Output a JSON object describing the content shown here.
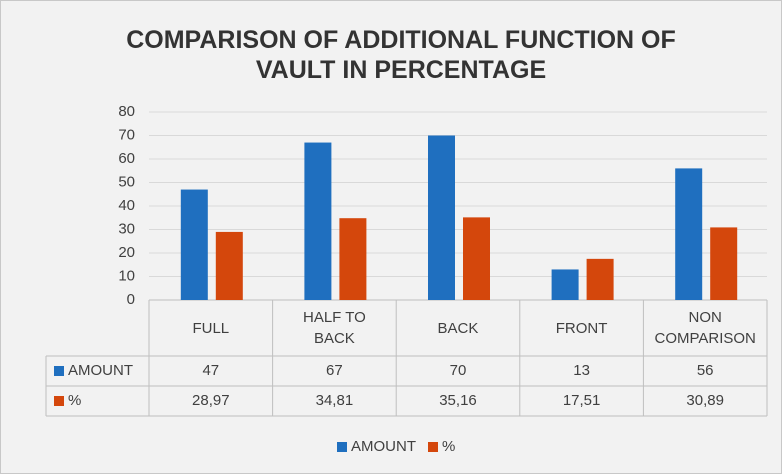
{
  "chart_data": {
    "type": "bar",
    "title": "COMPARISON OF ADDITIONAL FUNCTION OF VAULT IN PERCENTAGE",
    "categories": [
      "FULL",
      "HALF TO BACK",
      "BACK",
      "FRONT",
      "NON COMPARISON"
    ],
    "series": [
      {
        "name": "AMOUNT",
        "color": "#1f6fbf",
        "values": [
          47,
          67,
          70,
          13,
          56
        ]
      },
      {
        "name": "%",
        "color": "#d4470c",
        "values": [
          28.97,
          34.81,
          35.16,
          17.51,
          30.89
        ],
        "value_labels": [
          "28,97",
          "34,81",
          "35,16",
          "17,51",
          "30,89"
        ]
      }
    ],
    "ylim": [
      0,
      80
    ],
    "yticks": [
      0,
      10,
      20,
      30,
      40,
      50,
      60,
      70,
      80
    ],
    "grid": true,
    "legend": "bottom",
    "data_table": true
  }
}
